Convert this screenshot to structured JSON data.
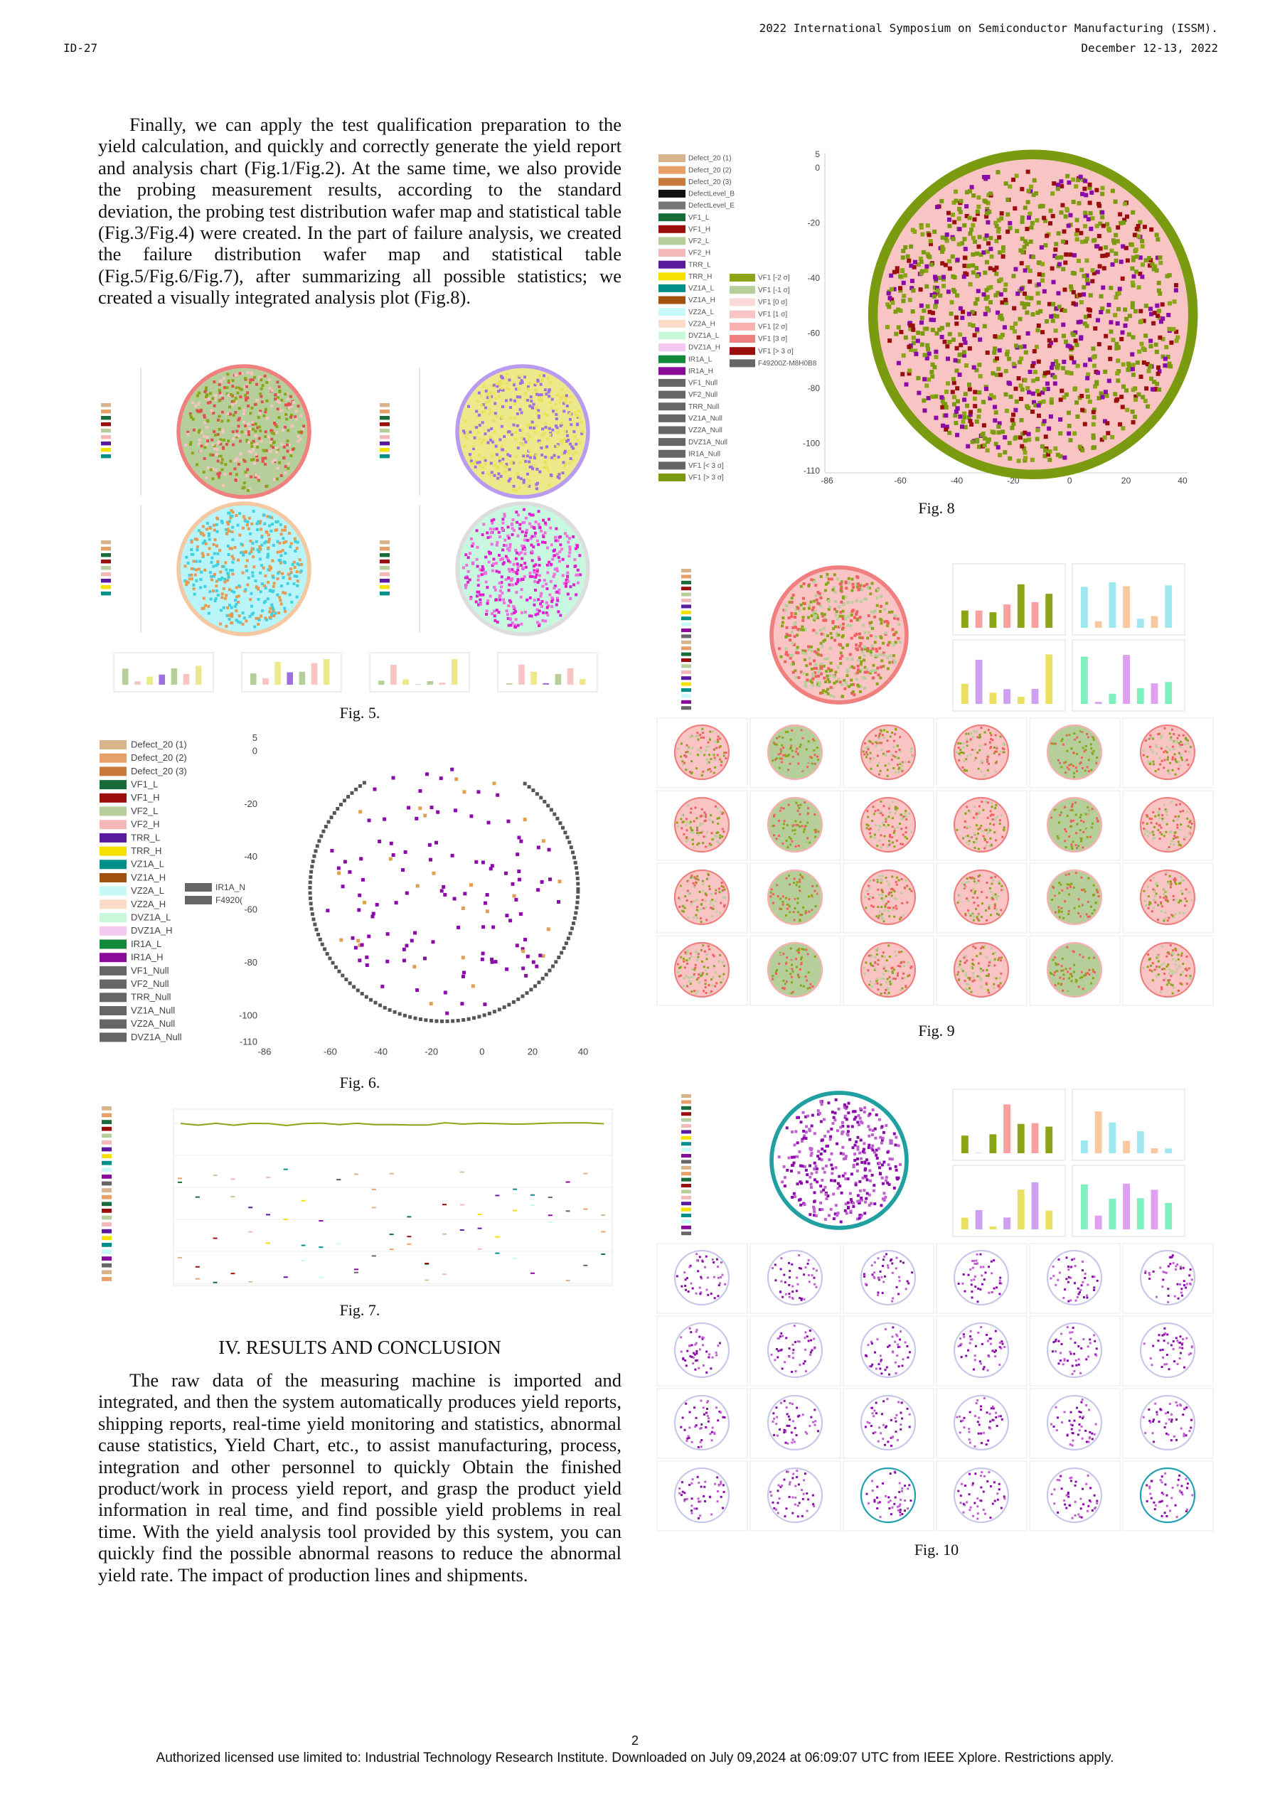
{
  "header": {
    "id": "ID-27",
    "conference": "2022 International Symposium on Semiconductor Manufacturing (ISSM).",
    "date": "December 12-13, 2022"
  },
  "body": {
    "paragraph_1": "Finally, we can apply the test qualification preparation to the yield calculation, and quickly and correctly generate the yield report and analysis chart (Fig.1/Fig.2). At the same time, we also provide the probing measurement results, according to the standard deviation, the probing test distribution wafer map and statistical table (Fig.3/Fig.4) were created. In the part of failure analysis, we created the failure distribution wafer map and statistical table (Fig.5/Fig.6/Fig.7), after summarizing all possible statistics; we created a visually integrated analysis plot (Fig.8).",
    "section_heading": "IV.  RESULTS AND CONCLUSION",
    "paragraph_2": "The raw data of the measuring machine is imported and integrated, and then the system automatically produces yield reports, shipping reports, real-time yield monitoring and statistics, abnormal cause statistics, Yield Chart, etc., to assist manufacturing, process, integration and other personnel to quickly Obtain the finished product/work in process yield report, and grasp the product yield information in real time, and find possible yield problems in real time. With the yield analysis tool provided by this system, you can quickly find the possible abnormal reasons to reduce the abnormal yield rate. The impact of production lines and shipments."
  },
  "figures": {
    "fig5": {
      "caption": "Fig. 5."
    },
    "fig6": {
      "caption": "Fig. 6.",
      "legend": [
        {
          "label": "Defect_20 (1)",
          "color": "#d9b48a"
        },
        {
          "label": "Defect_20 (2)",
          "color": "#e8a06a"
        },
        {
          "label": "Defect_20 (3)",
          "color": "#c87a3a"
        },
        {
          "label": "VF1_L",
          "color": "#1a6b3a"
        },
        {
          "label": "VF1_H",
          "color": "#9b0e0e"
        },
        {
          "label": "VF2_L",
          "color": "#b6cf9a"
        },
        {
          "label": "VF2_H",
          "color": "#f5b8b8"
        },
        {
          "label": "TRR_L",
          "color": "#5a1aa0"
        },
        {
          "label": "TRR_H",
          "color": "#f5e000"
        },
        {
          "label": "VZ1A_L",
          "color": "#00908a"
        },
        {
          "label": "VZ1A_H",
          "color": "#a0520e"
        },
        {
          "label": "VZ2A_L",
          "color": "#c8f8f8"
        },
        {
          "label": "VZ2A_H",
          "color": "#fcdcc8"
        },
        {
          "label": "DVZ1A_L",
          "color": "#c8f8d8"
        },
        {
          "label": "DVZ1A_H",
          "color": "#f4c8f0"
        },
        {
          "label": "IR1A_L",
          "color": "#128a3a"
        },
        {
          "label": "IR1A_H",
          "color": "#8a0a9a"
        },
        {
          "label": "VF1_Null",
          "color": "#666666"
        },
        {
          "label": "VF2_Null",
          "color": "#666666"
        },
        {
          "label": "TRR_Null",
          "color": "#666666"
        },
        {
          "label": "VZ1A_Null",
          "color": "#666666"
        },
        {
          "label": "VZ2A_Null",
          "color": "#666666"
        },
        {
          "label": "DVZ1A_Null",
          "color": "#666666"
        }
      ],
      "side_labels": [
        "IR1A_N",
        "F4920("
      ],
      "yticks": [
        5,
        0,
        -20,
        -40,
        -60,
        -80,
        -100,
        -110
      ],
      "xticks": [
        -86,
        -60,
        -40,
        -20,
        0,
        20,
        40
      ]
    },
    "fig7": {
      "caption": "Fig. 7."
    },
    "fig8": {
      "caption": "Fig. 8",
      "legend": [
        {
          "label": "Defect_20 (1)",
          "color": "#d9b48a"
        },
        {
          "label": "Defect_20 (2)",
          "color": "#e8a06a"
        },
        {
          "label": "Defect_20 (3)",
          "color": "#c87a3a"
        },
        {
          "label": "DefectLevel_B",
          "color": "#111111"
        },
        {
          "label": "DefectLevel_E",
          "color": "#777777"
        },
        {
          "label": "VF1_L",
          "color": "#1a6b3a"
        },
        {
          "label": "VF1_H",
          "color": "#9b0e0e"
        },
        {
          "label": "VF2_L",
          "color": "#b6cf9a"
        },
        {
          "label": "VF2_H",
          "color": "#f5b8b8"
        },
        {
          "label": "TRR_L",
          "color": "#5a1aa0"
        },
        {
          "label": "TRR_H",
          "color": "#f5e000"
        },
        {
          "label": "VZ1A_L",
          "color": "#00908a"
        },
        {
          "label": "VZ1A_H",
          "color": "#a0520e"
        },
        {
          "label": "VZ2A_L",
          "color": "#c8f8f8"
        },
        {
          "label": "VZ2A_H",
          "color": "#fcdcc8"
        },
        {
          "label": "DVZ1A_L",
          "color": "#c8f8d8"
        },
        {
          "label": "DVZ1A_H",
          "color": "#f4c8f0"
        },
        {
          "label": "IR1A_L",
          "color": "#128a3a"
        },
        {
          "label": "IR1A_H",
          "color": "#8a0a9a"
        },
        {
          "label": "VF1_Null",
          "color": "#666666"
        },
        {
          "label": "VF2_Null",
          "color": "#666666"
        },
        {
          "label": "TRR_Null",
          "color": "#666666"
        },
        {
          "label": "VZ1A_Null",
          "color": "#666666"
        },
        {
          "label": "VZ2A_Null",
          "color": "#666666"
        },
        {
          "label": "DVZ1A_Null",
          "color": "#666666"
        },
        {
          "label": "IR1A_Null",
          "color": "#666666"
        },
        {
          "label": "VF1 [< 3 σ]",
          "color": "#666666"
        },
        {
          "label": "VF1 [> 3 σ]",
          "color": "#7a9a10"
        }
      ],
      "sigma_legend": [
        {
          "label": "VF1 [-2 σ]",
          "color": "#8aa617"
        },
        {
          "label": "VF1 [-1 σ]",
          "color": "#b6cf9a"
        },
        {
          "label": "VF1 [0 σ]",
          "color": "#fcd8d8"
        },
        {
          "label": "VF1 [1 σ]",
          "color": "#f9c4c4"
        },
        {
          "label": "VF1 [2 σ]",
          "color": "#f9b0b0"
        },
        {
          "label": "VF1 [3 σ]",
          "color": "#f08080"
        },
        {
          "label": "VF1 [> 3 σ]",
          "color": "#9b0e0e"
        },
        {
          "label": "F49200Z-M8H0B8",
          "color": "#666666"
        }
      ],
      "yticks": [
        5,
        0,
        -20,
        -40,
        -60,
        -80,
        -100,
        -110
      ],
      "xticks": [
        -86,
        -60,
        -40,
        -20,
        0,
        20,
        40
      ]
    },
    "fig9": {
      "caption": "Fig. 9"
    },
    "fig10": {
      "caption": "Fig. 10"
    }
  },
  "footer": {
    "page": "2",
    "notice": "Authorized licensed use limited to: Industrial Technology Research Institute. Downloaded on July 09,2024 at 06:09:07 UTC from IEEE Xplore.  Restrictions apply."
  }
}
